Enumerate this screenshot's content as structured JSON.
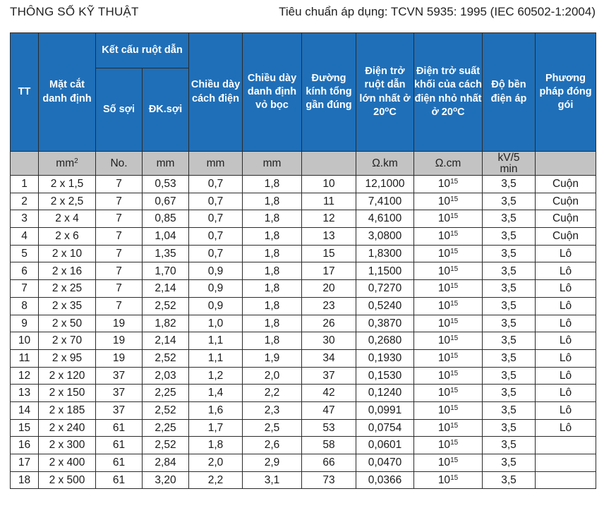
{
  "title": "THÔNG SỐ KỸ THUẬT",
  "standard": "Tiêu chuẩn áp dụng: TCVN 5935: 1995 (IEC 60502-1:2004)",
  "headers": {
    "tt": "TT",
    "section": "Mặt cắt danh định",
    "conductor": "Kết cấu ruột dẫn",
    "strands": "Số sợi",
    "strand_dia": "ĐK.sợi",
    "insulation": "Chiều dày cách điện",
    "sheath": "Chiều dày danh định vỏ bọc",
    "diameter": "Đường kính tổng gần đúng",
    "resistance": "Điện trở ruột dẫn lớn nhất ở 20",
    "resistivity": "Điện trở suất khối của cách điện nhỏ nhất ở 20",
    "deg": "o",
    "c": "C",
    "voltage": "Độ bền điện áp",
    "packing": "Phương pháp đóng gói"
  },
  "units": {
    "section": "mm",
    "section_exp": "2",
    "strands": "No.",
    "strand_dia": "mm",
    "insulation": "mm",
    "sheath": "mm",
    "diameter": "",
    "resistance": "Ω.km",
    "resistivity": "Ω.cm",
    "voltage_top": "kV/5",
    "voltage_bottom": "min",
    "packing": ""
  },
  "rows": [
    {
      "tt": "1",
      "section": "2 x 1,5",
      "strands": "7",
      "strand_dia": "0,53",
      "insulation": "0,7",
      "sheath": "1,8",
      "diameter": "10",
      "resistance": "12,1000",
      "resistivity_base": "10",
      "resistivity_exp": "15",
      "voltage": "3,5",
      "packing": "Cuộn"
    },
    {
      "tt": "2",
      "section": "2 x 2,5",
      "strands": "7",
      "strand_dia": "0,67",
      "insulation": "0,7",
      "sheath": "1,8",
      "diameter": "11",
      "resistance": "7,4100",
      "resistivity_base": "10",
      "resistivity_exp": "15",
      "voltage": "3,5",
      "packing": "Cuộn"
    },
    {
      "tt": "3",
      "section": "2 x 4",
      "strands": "7",
      "strand_dia": "0,85",
      "insulation": "0,7",
      "sheath": "1,8",
      "diameter": "12",
      "resistance": "4,6100",
      "resistivity_base": "10",
      "resistivity_exp": "15",
      "voltage": "3,5",
      "packing": "Cuộn"
    },
    {
      "tt": "4",
      "section": "2 x 6",
      "strands": "7",
      "strand_dia": "1,04",
      "insulation": "0,7",
      "sheath": "1,8",
      "diameter": "13",
      "resistance": "3,0800",
      "resistivity_base": "10",
      "resistivity_exp": "15",
      "voltage": "3,5",
      "packing": "Cuộn"
    },
    {
      "tt": "5",
      "section": "2 x 10",
      "strands": "7",
      "strand_dia": "1,35",
      "insulation": "0,7",
      "sheath": "1,8",
      "diameter": "15",
      "resistance": "1,8300",
      "resistivity_base": "10",
      "resistivity_exp": "15",
      "voltage": "3,5",
      "packing": "Lô"
    },
    {
      "tt": "6",
      "section": "2 x 16",
      "strands": "7",
      "strand_dia": "1,70",
      "insulation": "0,9",
      "sheath": "1,8",
      "diameter": "17",
      "resistance": "1,1500",
      "resistivity_base": "10",
      "resistivity_exp": "15",
      "voltage": "3,5",
      "packing": "Lô"
    },
    {
      "tt": "7",
      "section": "2 x 25",
      "strands": "7",
      "strand_dia": "2,14",
      "insulation": "0,9",
      "sheath": "1,8",
      "diameter": "20",
      "resistance": "0,7270",
      "resistivity_base": "10",
      "resistivity_exp": "15",
      "voltage": "3,5",
      "packing": "Lô"
    },
    {
      "tt": "8",
      "section": "2 x 35",
      "strands": "7",
      "strand_dia": "2,52",
      "insulation": "0,9",
      "sheath": "1,8",
      "diameter": "23",
      "resistance": "0,5240",
      "resistivity_base": "10",
      "resistivity_exp": "15",
      "voltage": "3,5",
      "packing": "Lô"
    },
    {
      "tt": "9",
      "section": "2 x 50",
      "strands": "19",
      "strand_dia": "1,82",
      "insulation": "1,0",
      "sheath": "1,8",
      "diameter": "26",
      "resistance": "0,3870",
      "resistivity_base": "10",
      "resistivity_exp": "15",
      "voltage": "3,5",
      "packing": "Lô"
    },
    {
      "tt": "10",
      "section": "2 x 70",
      "strands": "19",
      "strand_dia": "2,14",
      "insulation": "1,1",
      "sheath": "1,8",
      "diameter": "30",
      "resistance": "0,2680",
      "resistivity_base": "10",
      "resistivity_exp": "15",
      "voltage": "3,5",
      "packing": "Lô"
    },
    {
      "tt": "11",
      "section": "2 x 95",
      "strands": "19",
      "strand_dia": "2,52",
      "insulation": "1,1",
      "sheath": "1,9",
      "diameter": "34",
      "resistance": "0,1930",
      "resistivity_base": "10",
      "resistivity_exp": "15",
      "voltage": "3,5",
      "packing": "Lô"
    },
    {
      "tt": "12",
      "section": "2 x 120",
      "strands": "37",
      "strand_dia": "2,03",
      "insulation": "1,2",
      "sheath": "2,0",
      "diameter": "37",
      "resistance": "0,1530",
      "resistivity_base": "10",
      "resistivity_exp": "15",
      "voltage": "3,5",
      "packing": "Lô"
    },
    {
      "tt": "13",
      "section": "2 x 150",
      "strands": "37",
      "strand_dia": "2,25",
      "insulation": "1,4",
      "sheath": "2,2",
      "diameter": "42",
      "resistance": "0,1240",
      "resistivity_base": "10",
      "resistivity_exp": "15",
      "voltage": "3,5",
      "packing": "Lô"
    },
    {
      "tt": "14",
      "section": "2 x 185",
      "strands": "37",
      "strand_dia": "2,52",
      "insulation": "1,6",
      "sheath": "2,3",
      "diameter": "47",
      "resistance": "0,0991",
      "resistivity_base": "10",
      "resistivity_exp": "15",
      "voltage": "3,5",
      "packing": "Lô"
    },
    {
      "tt": "15",
      "section": "2 x 240",
      "strands": "61",
      "strand_dia": "2,25",
      "insulation": "1,7",
      "sheath": "2,5",
      "diameter": "53",
      "resistance": "0,0754",
      "resistivity_base": "10",
      "resistivity_exp": "15",
      "voltage": "3,5",
      "packing": "Lô"
    },
    {
      "tt": "16",
      "section": "2 x 300",
      "strands": "61",
      "strand_dia": "2,52",
      "insulation": "1,8",
      "sheath": "2,6",
      "diameter": "58",
      "resistance": "0,0601",
      "resistivity_base": "10",
      "resistivity_exp": "15",
      "voltage": "3,5",
      "packing": ""
    },
    {
      "tt": "17",
      "section": "2 x 400",
      "strands": "61",
      "strand_dia": "2,84",
      "insulation": "2,0",
      "sheath": "2,9",
      "diameter": "66",
      "resistance": "0,0470",
      "resistivity_base": "10",
      "resistivity_exp": "15",
      "voltage": "3,5",
      "packing": ""
    },
    {
      "tt": "18",
      "section": "2 x 500",
      "strands": "61",
      "strand_dia": "3,20",
      "insulation": "2,2",
      "sheath": "3,1",
      "diameter": "73",
      "resistance": "0,0366",
      "resistivity_base": "10",
      "resistivity_exp": "15",
      "voltage": "3,5",
      "packing": ""
    }
  ]
}
